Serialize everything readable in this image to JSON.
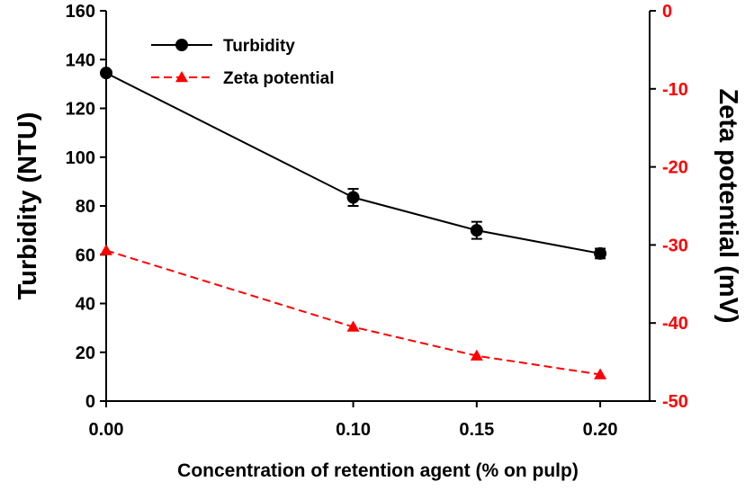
{
  "chart_data": {
    "type": "line",
    "title": "",
    "xlabel": "Concentration of retention agent (% on pulp)",
    "ylabel": "Turbidity (NTU)",
    "y2label": "Zeta potential (mV)",
    "x": [
      0.0,
      0.1,
      0.15,
      0.2
    ],
    "x_tick_labels": [
      "0.00",
      "0.10",
      "0.15",
      "0.20"
    ],
    "xlim": [
      0.0,
      0.22
    ],
    "ylim": [
      0,
      160
    ],
    "y_ticks": [
      "0",
      "20",
      "40",
      "60",
      "80",
      "100",
      "120",
      "140",
      "160"
    ],
    "y2lim": [
      -50,
      0
    ],
    "y2_ticks": [
      "-50",
      "-40",
      "-30",
      "-20",
      "-10",
      "0"
    ],
    "grid": false,
    "legend_position": "top-left",
    "series": [
      {
        "name": "Turbidity",
        "axis": "left",
        "color": "#000000",
        "marker": "circle",
        "line_style": "solid",
        "values": [
          134.5,
          83.5,
          70.0,
          60.5
        ],
        "error": [
          0,
          3.5,
          3.5,
          2.0
        ]
      },
      {
        "name": "Zeta potential",
        "axis": "right",
        "color": "#ff0000",
        "marker": "triangle",
        "line_style": "dashed",
        "values": [
          -30.7,
          -40.5,
          -44.2,
          -46.6
        ]
      }
    ]
  }
}
